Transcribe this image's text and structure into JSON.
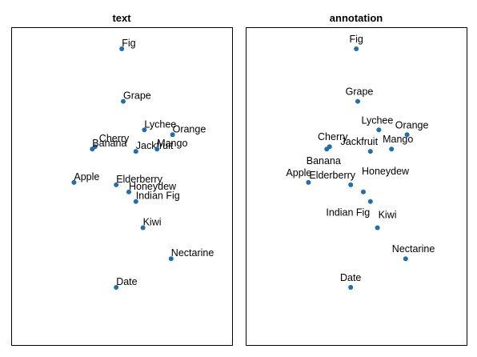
{
  "chart_data": [
    {
      "type": "scatter",
      "title": "text",
      "xlabel": "",
      "ylabel": "",
      "grid": false,
      "color": "#1f6fae",
      "points": [
        {
          "label": "Fig",
          "x": 0.49,
          "y": 1.0
        },
        {
          "label": "Grape",
          "x": 0.5,
          "y": 0.78
        },
        {
          "label": "Lychee",
          "x": 0.65,
          "y": 0.66
        },
        {
          "label": "Orange",
          "x": 0.85,
          "y": 0.64
        },
        {
          "label": "Cherry",
          "x": 0.3,
          "y": 0.59
        },
        {
          "label": "Banana",
          "x": 0.28,
          "y": 0.58
        },
        {
          "label": "Jackfruit",
          "x": 0.59,
          "y": 0.57
        },
        {
          "label": "Mango",
          "x": 0.74,
          "y": 0.58
        },
        {
          "label": "Apple",
          "x": 0.15,
          "y": 0.44
        },
        {
          "label": "Elderberry",
          "x": 0.45,
          "y": 0.43
        },
        {
          "label": "Honeydew",
          "x": 0.54,
          "y": 0.4
        },
        {
          "label": "Indian Fig",
          "x": 0.59,
          "y": 0.36
        },
        {
          "label": "Kiwi",
          "x": 0.64,
          "y": 0.25
        },
        {
          "label": "Nectarine",
          "x": 0.84,
          "y": 0.12
        },
        {
          "label": "Date",
          "x": 0.45,
          "y": 0.0
        }
      ]
    },
    {
      "type": "scatter",
      "title": "annotation",
      "xlabel": "",
      "ylabel": "",
      "grid": false,
      "color": "#1f6fae",
      "points": [
        {
          "label": "Fig",
          "x": 0.49,
          "y": 1.0
        },
        {
          "label": "Grape",
          "x": 0.5,
          "y": 0.78
        },
        {
          "label": "Lychee",
          "x": 0.65,
          "y": 0.66
        },
        {
          "label": "Orange",
          "x": 0.85,
          "y": 0.64
        },
        {
          "label": "Cherry",
          "x": 0.3,
          "y": 0.59
        },
        {
          "label": "Banana",
          "x": 0.28,
          "y": 0.58
        },
        {
          "label": "Jackfruit",
          "x": 0.59,
          "y": 0.57
        },
        {
          "label": "Mango",
          "x": 0.74,
          "y": 0.58
        },
        {
          "label": "Apple",
          "x": 0.15,
          "y": 0.44
        },
        {
          "label": "Elderberry",
          "x": 0.45,
          "y": 0.43
        },
        {
          "label": "Honeydew",
          "x": 0.54,
          "y": 0.4
        },
        {
          "label": "Indian Fig",
          "x": 0.59,
          "y": 0.36
        },
        {
          "label": "Kiwi",
          "x": 0.64,
          "y": 0.25
        },
        {
          "label": "Nectarine",
          "x": 0.84,
          "y": 0.12
        },
        {
          "label": "Date",
          "x": 0.45,
          "y": 0.0
        }
      ]
    }
  ]
}
